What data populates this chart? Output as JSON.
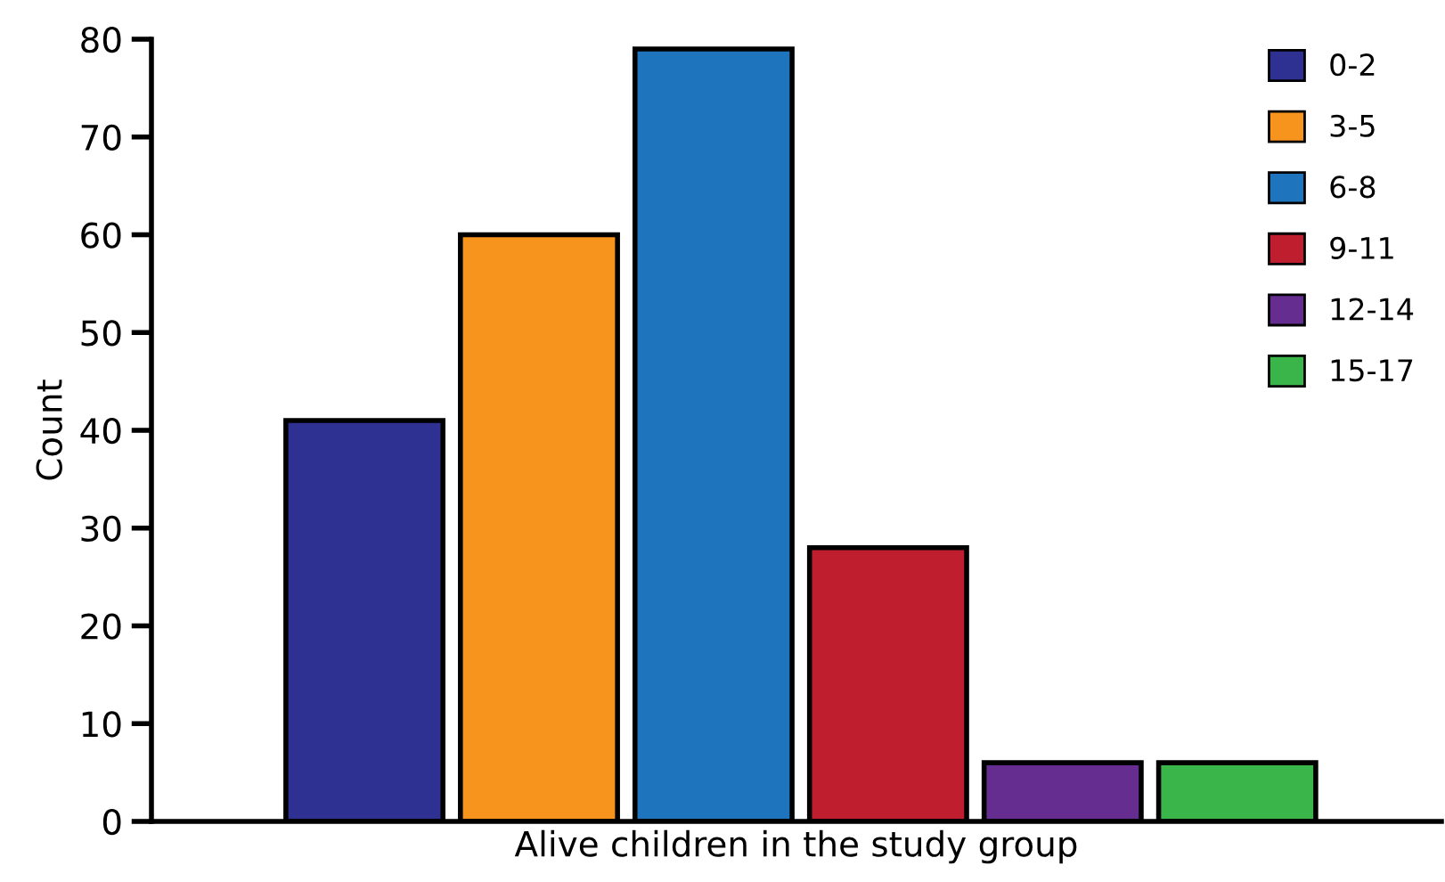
{
  "chart_data": {
    "type": "bar",
    "xlabel": "Alive children in the study group",
    "ylabel": "Count",
    "categories": [
      null,
      null,
      null,
      null,
      null,
      null
    ],
    "series": [
      {
        "name": "0-2",
        "color": "#2e3192",
        "values": [
          41,
          null,
          null,
          null,
          null,
          null
        ]
      },
      {
        "name": "3-5",
        "color": "#f7941d",
        "values": [
          null,
          60,
          null,
          null,
          null,
          null
        ]
      },
      {
        "name": "6-8",
        "color": "#1f75bd",
        "values": [
          null,
          null,
          79,
          null,
          null,
          null
        ]
      },
      {
        "name": "9-11",
        "color": "#be1e2d",
        "values": [
          null,
          null,
          null,
          28,
          null,
          null
        ]
      },
      {
        "name": "12-14",
        "color": "#662d91",
        "values": [
          null,
          null,
          null,
          null,
          6,
          null
        ]
      },
      {
        "name": "15-17",
        "color": "#39b54a",
        "values": [
          null,
          null,
          null,
          null,
          null,
          6
        ]
      }
    ],
    "ylim": [
      0,
      80
    ],
    "yticks": [
      0,
      10,
      20,
      30,
      40,
      50,
      60,
      70,
      80
    ],
    "grid": false,
    "legend": "top right"
  }
}
